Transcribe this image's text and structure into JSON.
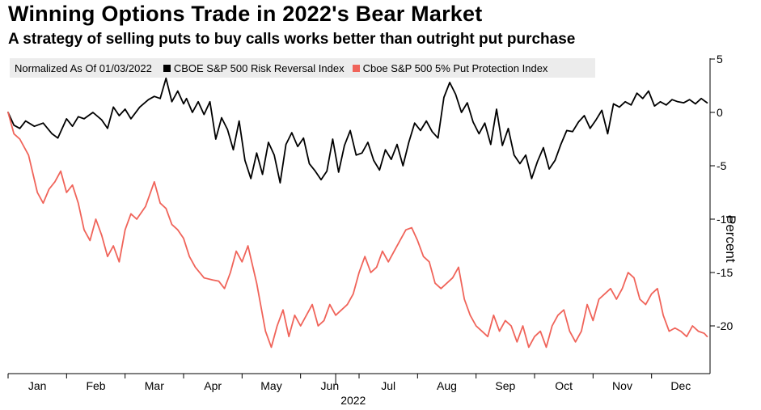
{
  "title": "Winning Options Trade in 2022's Bear Market",
  "subtitle": "A strategy of selling puts to buy calls works better than outright put purchase",
  "legend": {
    "normalized_text": "Normalized As Of 01/03/2022",
    "series1_label": "CBOE S&P 500 Risk Reversal Index",
    "series2_label": "Cboe S&P 500 5% Put Protection Index"
  },
  "colors": {
    "series1": "#000000",
    "series2": "#f0645a"
  },
  "chart_data": {
    "type": "line",
    "title": "Winning Options Trade in 2022's Bear Market",
    "subtitle": "A strategy of selling puts to buy calls works better than outright put purchase",
    "xlabel": "2022",
    "ylabel": "Percent",
    "ylim": [
      -24.5,
      5.5
    ],
    "yticks": [
      5,
      0,
      -5,
      -10,
      -15,
      -20
    ],
    "xlim": [
      0,
      12
    ],
    "months": [
      "Jan",
      "Feb",
      "Mar",
      "Apr",
      "May",
      "Jun",
      "Jul",
      "Aug",
      "Sep",
      "Oct",
      "Nov",
      "Dec"
    ],
    "year_label": "2022",
    "legend_position": "top-left",
    "series": [
      {
        "name": "CBOE S&P 500 Risk Reversal Index",
        "color": "#000000",
        "x": [
          0,
          0.1,
          0.2,
          0.3,
          0.45,
          0.6,
          0.75,
          0.85,
          1.0,
          1.1,
          1.2,
          1.3,
          1.45,
          1.6,
          1.7,
          1.8,
          1.9,
          2.0,
          2.1,
          2.25,
          2.4,
          2.5,
          2.6,
          2.7,
          2.8,
          2.9,
          3.0,
          3.05,
          3.15,
          3.25,
          3.35,
          3.45,
          3.55,
          3.65,
          3.75,
          3.85,
          3.95,
          4.05,
          4.15,
          4.25,
          4.35,
          4.45,
          4.55,
          4.65,
          4.75,
          4.85,
          4.95,
          5.05,
          5.15,
          5.25,
          5.35,
          5.45,
          5.55,
          5.65,
          5.75,
          5.85,
          5.95,
          6.05,
          6.15,
          6.25,
          6.35,
          6.45,
          6.55,
          6.65,
          6.75,
          6.85,
          6.95,
          7.05,
          7.15,
          7.25,
          7.35,
          7.45,
          7.55,
          7.65,
          7.75,
          7.85,
          7.95,
          8.05,
          8.15,
          8.25,
          8.35,
          8.45,
          8.55,
          8.65,
          8.75,
          8.85,
          8.95,
          9.05,
          9.15,
          9.25,
          9.35,
          9.45,
          9.55,
          9.65,
          9.75,
          9.85,
          9.95,
          10.05,
          10.15,
          10.25,
          10.35,
          10.45,
          10.55,
          10.65,
          10.75,
          10.85,
          10.95,
          11.05,
          11.15,
          11.25,
          11.35,
          11.45,
          11.55,
          11.65,
          11.75,
          11.85,
          11.95
        ],
        "values": [
          0,
          -1.2,
          -1.5,
          -0.8,
          -1.3,
          -1.0,
          -2.0,
          -2.4,
          -0.6,
          -1.3,
          -0.4,
          -0.6,
          0.0,
          -0.7,
          -1.5,
          0.5,
          -0.3,
          0.3,
          -0.6,
          0.5,
          1.2,
          1.5,
          1.3,
          3.2,
          1.0,
          2.0,
          0.8,
          1.3,
          0.0,
          1.0,
          -0.2,
          1.0,
          -2.5,
          -0.5,
          -1.6,
          -3.5,
          -0.8,
          -4.5,
          -6.2,
          -3.8,
          -5.8,
          -2.8,
          -4.0,
          -6.6,
          -3.0,
          -1.9,
          -3.2,
          -2.4,
          -4.8,
          -5.5,
          -6.3,
          -5.5,
          -2.5,
          -5.6,
          -3.1,
          -1.7,
          -4.0,
          -3.8,
          -2.8,
          -4.5,
          -5.4,
          -3.5,
          -4.4,
          -3.0,
          -5.0,
          -2.8,
          -1.0,
          -1.7,
          -0.8,
          -1.8,
          -2.4,
          1.4,
          2.8,
          1.7,
          0.0,
          0.9,
          -0.9,
          -2.0,
          -1.0,
          -3.0,
          0.3,
          -3.1,
          -1.5,
          -4.0,
          -4.8,
          -4.0,
          -6.2,
          -4.6,
          -3.3,
          -5.3,
          -4.5,
          -3.0,
          -1.7,
          -1.8,
          -0.9,
          -0.3,
          -1.5,
          -0.7,
          0.2,
          -2.0,
          0.8,
          0.5,
          1.0,
          0.7,
          1.8,
          1.3,
          2.0,
          0.6,
          1.0,
          0.7,
          1.2,
          1.0,
          0.9,
          1.2,
          0.8,
          1.3,
          0.9
        ]
      },
      {
        "name": "Cboe S&P 500 5% Put Protection Index",
        "color": "#f0645a",
        "x": [
          0,
          0.1,
          0.2,
          0.35,
          0.5,
          0.6,
          0.7,
          0.8,
          0.9,
          1.0,
          1.1,
          1.2,
          1.3,
          1.4,
          1.5,
          1.6,
          1.7,
          1.8,
          1.9,
          2.0,
          2.1,
          2.2,
          2.35,
          2.5,
          2.6,
          2.7,
          2.8,
          2.9,
          3.0,
          3.1,
          3.2,
          3.35,
          3.5,
          3.6,
          3.7,
          3.8,
          3.9,
          4.0,
          4.1,
          4.25,
          4.4,
          4.5,
          4.6,
          4.7,
          4.8,
          4.9,
          5.0,
          5.1,
          5.2,
          5.3,
          5.4,
          5.5,
          5.6,
          5.7,
          5.8,
          5.9,
          6.0,
          6.1,
          6.2,
          6.3,
          6.4,
          6.5,
          6.6,
          6.7,
          6.8,
          6.9,
          7.0,
          7.1,
          7.2,
          7.3,
          7.4,
          7.5,
          7.6,
          7.7,
          7.8,
          7.9,
          8.0,
          8.1,
          8.2,
          8.3,
          8.4,
          8.5,
          8.6,
          8.7,
          8.8,
          8.9,
          9.0,
          9.1,
          9.2,
          9.3,
          9.4,
          9.5,
          9.6,
          9.7,
          9.8,
          9.9,
          10.0,
          10.1,
          10.2,
          10.3,
          10.4,
          10.5,
          10.6,
          10.7,
          10.8,
          10.9,
          11.0,
          11.1,
          11.2,
          11.3,
          11.4,
          11.5,
          11.6,
          11.7,
          11.8,
          11.9,
          11.95
        ],
        "values": [
          0,
          -2.0,
          -2.5,
          -4.0,
          -7.5,
          -8.5,
          -7.2,
          -6.5,
          -5.5,
          -7.5,
          -6.8,
          -8.5,
          -11.0,
          -12.0,
          -10.0,
          -11.5,
          -13.5,
          -12.5,
          -14.0,
          -11.0,
          -9.5,
          -10.0,
          -8.8,
          -6.5,
          -8.5,
          -9.0,
          -10.5,
          -11.0,
          -11.8,
          -13.5,
          -14.5,
          -15.5,
          -15.7,
          -15.8,
          -16.5,
          -15.0,
          -13.0,
          -14.0,
          -12.5,
          -16.0,
          -20.5,
          -22.0,
          -20.0,
          -18.5,
          -21.0,
          -19.0,
          -20.0,
          -19.0,
          -18.0,
          -20.0,
          -19.5,
          -18.0,
          -19.0,
          -18.5,
          -18.0,
          -17.0,
          -15.0,
          -13.5,
          -15.0,
          -14.5,
          -13.0,
          -14.0,
          -13.0,
          -12.0,
          -11.0,
          -10.8,
          -12.0,
          -13.5,
          -14.0,
          -16.0,
          -16.5,
          -16.0,
          -15.5,
          -14.5,
          -17.5,
          -19.0,
          -20.0,
          -20.5,
          -21.0,
          -19.0,
          -20.5,
          -19.5,
          -20.0,
          -21.5,
          -20.0,
          -22.0,
          -21.0,
          -20.5,
          -22.0,
          -20.0,
          -19.0,
          -18.5,
          -20.5,
          -21.5,
          -20.5,
          -18.0,
          -19.5,
          -17.5,
          -17.0,
          -16.5,
          -17.5,
          -16.5,
          -15.0,
          -15.5,
          -17.5,
          -18.0,
          -17.0,
          -16.5,
          -19.0,
          -20.5,
          -20.2,
          -20.5,
          -21.0,
          -20.0,
          -20.5,
          -20.7,
          -21.0
        ]
      }
    ]
  }
}
